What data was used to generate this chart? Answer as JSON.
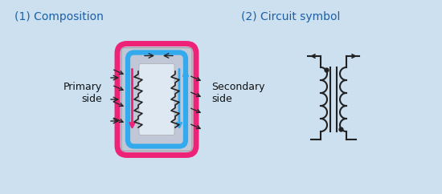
{
  "bg_color": "#cce0f0",
  "border_color": "#6699bb",
  "title1": "(1) Composition",
  "title2": "(2) Circuit symbol",
  "title_color": "#1a5fa8",
  "title_fontsize": 10,
  "label_primary": "Primary\nside",
  "label_secondary": "Secondary\nside",
  "label_color": "#111111",
  "label_fontsize": 9,
  "pink_color": "#ee2277",
  "blue_color": "#33aaee",
  "core_fill": "#c0c8d8",
  "inner_fill": "#dde8f2",
  "coil_color": "#222222",
  "arrow_color": "#222222"
}
